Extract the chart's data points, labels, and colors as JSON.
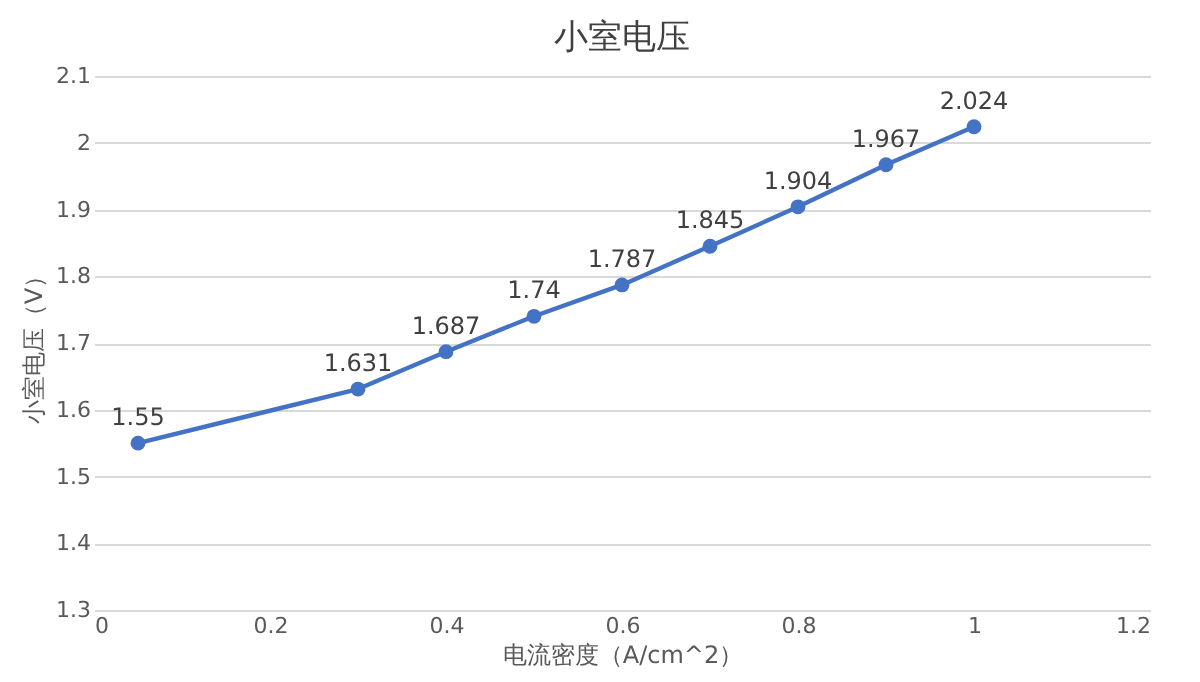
{
  "chart_data": {
    "type": "line",
    "title": "小室电压",
    "xlabel": "电流密度（A/cm^2）",
    "ylabel": "小室电压（V）",
    "x": [
      0.05,
      0.3,
      0.4,
      0.5,
      0.6,
      0.7,
      0.8,
      0.9,
      1.0
    ],
    "series": [
      {
        "color": "#4472c4",
        "values": [
          1.55,
          1.631,
          1.687,
          1.74,
          1.787,
          1.845,
          1.904,
          1.967,
          2.024
        ]
      }
    ],
    "xlim": [
      0,
      1.2
    ],
    "xticks": [
      0,
      0.2,
      0.4,
      0.6,
      0.8,
      1,
      1.2
    ],
    "ylim": [
      1.3,
      2.1
    ],
    "yticks": [
      1.3,
      1.4,
      1.5,
      1.6,
      1.7,
      1.8,
      1.9,
      2,
      2.1
    ],
    "grid": "y",
    "marker": "circle",
    "line_style": "solid",
    "data_labels": true
  }
}
